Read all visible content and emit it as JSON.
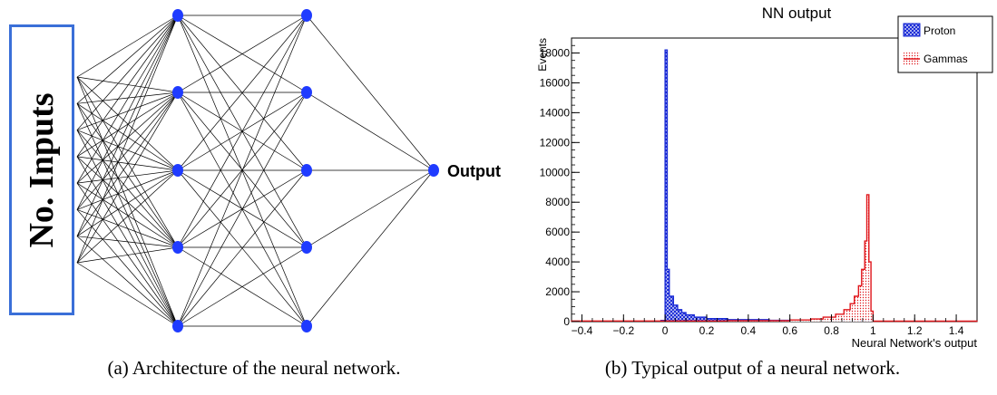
{
  "figure_a": {
    "inputs_label": "No. Inputs",
    "output_label": "Output",
    "layers": [
      5,
      5,
      1
    ],
    "node_color": "#1f3bff",
    "box_color": "#3a6fd8",
    "caption": "(a) Architecture of the neural network."
  },
  "figure_b": {
    "caption": "(b) Typical output of a neural network."
  },
  "chart_data": {
    "type": "histogram",
    "title": "NN output",
    "xlabel": "Neural Network's output",
    "ylabel": "Events",
    "xlim": [
      -0.45,
      1.5
    ],
    "ylim": [
      0,
      19000
    ],
    "x_ticks": [
      -0.4,
      -0.2,
      0,
      0.2,
      0.4,
      0.6,
      0.8,
      1,
      1.2,
      1.4
    ],
    "x_tick_labels": [
      "−0.4",
      "−0.2",
      "0",
      "0.2",
      "0.4",
      "0.6",
      "0.8",
      "1",
      "1.2",
      "1.4"
    ],
    "y_ticks": [
      0,
      2000,
      4000,
      6000,
      8000,
      10000,
      12000,
      14000,
      16000,
      18000
    ],
    "y_tick_labels": [
      "0",
      "2000",
      "4000",
      "6000",
      "8000",
      "10000",
      "12000",
      "14000",
      "16000",
      "18000"
    ],
    "legend_position": "top-right",
    "series": [
      {
        "name": "Proton",
        "color": "#1a2bd6",
        "bins": [
          [
            -0.02,
            0,
            80
          ],
          [
            0,
            0.01,
            18200
          ],
          [
            0.01,
            0.02,
            3500
          ],
          [
            0.02,
            0.04,
            1700
          ],
          [
            0.04,
            0.06,
            1100
          ],
          [
            0.06,
            0.08,
            800
          ],
          [
            0.08,
            0.1,
            600
          ],
          [
            0.1,
            0.14,
            450
          ],
          [
            0.14,
            0.2,
            300
          ],
          [
            0.2,
            0.3,
            200
          ],
          [
            0.3,
            0.5,
            130
          ],
          [
            0.5,
            0.7,
            90
          ],
          [
            0.7,
            0.9,
            70
          ],
          [
            0.9,
            0.97,
            100
          ],
          [
            0.97,
            0.99,
            180
          ],
          [
            0.99,
            1.0,
            60
          ]
        ]
      },
      {
        "name": "Gammas",
        "color": "#e0161b",
        "bins": [
          [
            -0.45,
            0.3,
            40
          ],
          [
            0.3,
            0.6,
            60
          ],
          [
            0.6,
            0.7,
            110
          ],
          [
            0.7,
            0.76,
            180
          ],
          [
            0.76,
            0.82,
            300
          ],
          [
            0.82,
            0.86,
            500
          ],
          [
            0.86,
            0.89,
            800
          ],
          [
            0.89,
            0.91,
            1200
          ],
          [
            0.91,
            0.93,
            1700
          ],
          [
            0.93,
            0.945,
            2400
          ],
          [
            0.945,
            0.96,
            3500
          ],
          [
            0.96,
            0.97,
            5400
          ],
          [
            0.97,
            0.98,
            8500
          ],
          [
            0.98,
            0.99,
            4000
          ],
          [
            0.99,
            1.0,
            700
          ],
          [
            1.0,
            1.5,
            30
          ]
        ]
      }
    ]
  }
}
